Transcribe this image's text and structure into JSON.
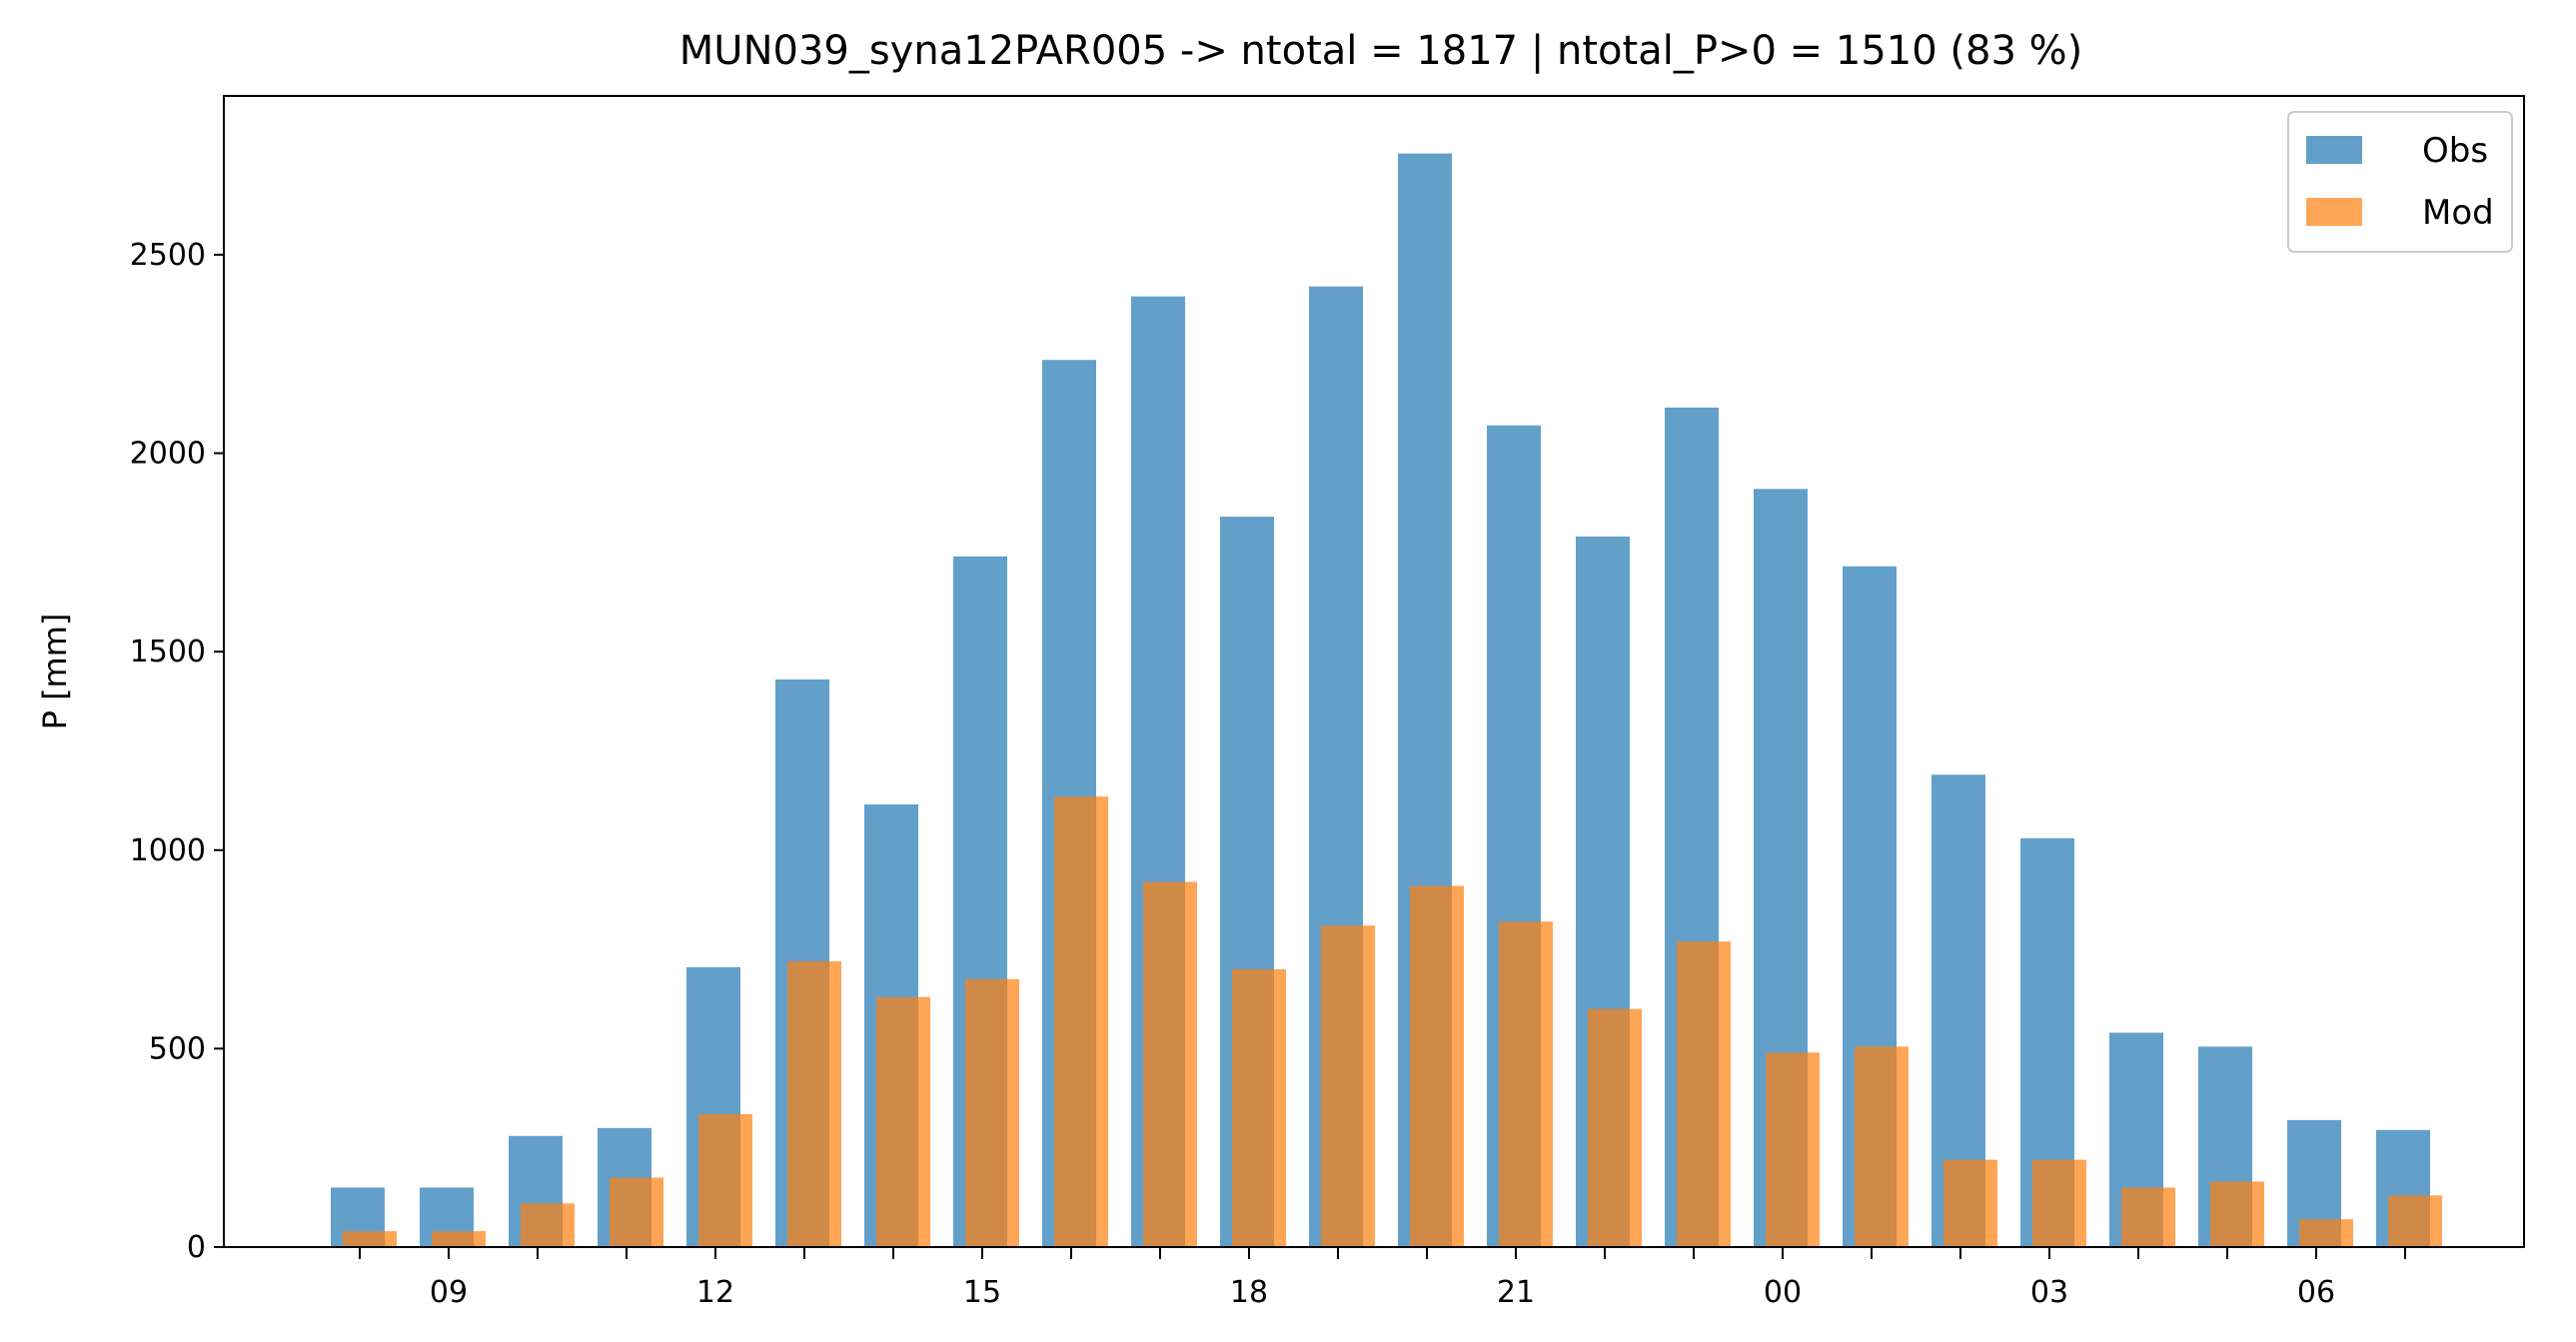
{
  "chart_data": {
    "type": "bar",
    "title": "MUN039_syna12PAR005 -> ntotal = 1817 | ntotal_P>0 = 1510 (83 %)",
    "xlabel": "",
    "ylabel": "P [mm]",
    "ylim": [
      0,
      2900
    ],
    "yticks": [
      0,
      500,
      1000,
      1500,
      2000,
      2500
    ],
    "x_tick_labels": [
      "09",
      "12",
      "15",
      "18",
      "21",
      "00",
      "03",
      "06"
    ],
    "categories": [
      "08",
      "09",
      "10",
      "11",
      "12",
      "13",
      "14",
      "15",
      "16",
      "17",
      "18",
      "19",
      "20",
      "21",
      "22",
      "23",
      "00",
      "01",
      "02",
      "03",
      "04",
      "05",
      "06",
      "07"
    ],
    "series": [
      {
        "name": "Obs",
        "color": "#1f77b4",
        "values": [
          150,
          150,
          280,
          300,
          705,
          1430,
          1115,
          1740,
          2235,
          2395,
          1840,
          2420,
          2755,
          2070,
          1790,
          2115,
          1910,
          1715,
          1190,
          1030,
          540,
          505,
          320,
          295
        ]
      },
      {
        "name": "Mod",
        "color": "#ff7f0e",
        "values": [
          40,
          40,
          110,
          175,
          335,
          720,
          630,
          675,
          1135,
          920,
          700,
          810,
          910,
          820,
          600,
          770,
          490,
          505,
          220,
          220,
          150,
          165,
          70,
          130
        ]
      }
    ],
    "grid": false,
    "legend_position": "top-right"
  }
}
